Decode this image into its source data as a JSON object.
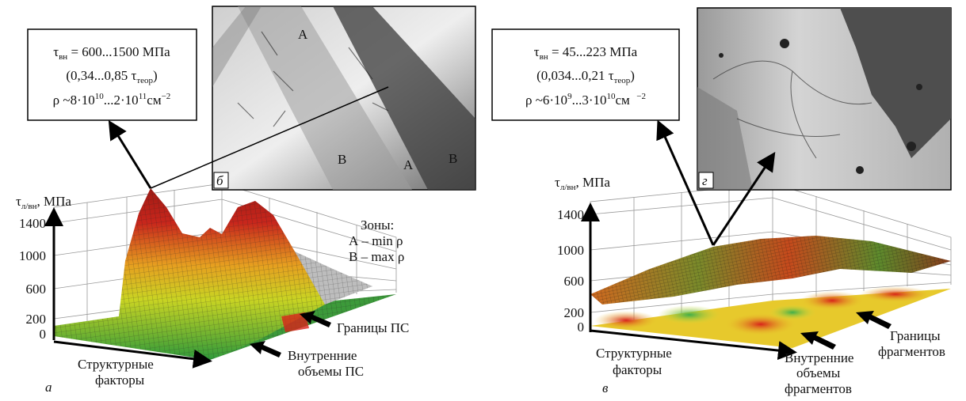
{
  "panel_a": {
    "callout": {
      "l1": {
        "sym": "τ",
        "sub": "вн",
        "rest": " = 600...1500 МПа"
      },
      "l2": {
        "pre": "(0,34...0,85 τ",
        "sub": "теор",
        "post": ")"
      },
      "l3": {
        "pre": "ρ ~8·10",
        "sup1": "10",
        "mid": "...2·10",
        "sup2": "11",
        "post": "см",
        "sup3": "−2"
      }
    },
    "micrograph": {
      "labels": [
        "А",
        "В",
        "В",
        "А"
      ],
      "letter": "б"
    },
    "axis_label": {
      "sym": "τ",
      "sub": "л/вн",
      "rest": ", МПа"
    },
    "ticks": [
      1400,
      1000,
      600,
      200,
      0
    ],
    "zones": [
      "Зоны:",
      "А – min ρ",
      "В – max ρ"
    ],
    "boundaries": "Границы ПС",
    "inner": [
      "Внутренние",
      "объемы ПС"
    ],
    "factors": [
      "Структурные",
      "факторы"
    ],
    "letter": "а"
  },
  "panel_b": {
    "callout": {
      "l1": {
        "sym": "τ",
        "sub": "вн",
        "rest": " = 45...223 МПа"
      },
      "l2": {
        "pre": "(0,034...0,21 τ",
        "sub": "теор",
        "post": ")"
      },
      "l3": {
        "pre": "ρ ~6·10",
        "sup1": "9",
        "mid": "...3·10",
        "sup2": "10",
        "post": "см  ",
        "sup3": "−2"
      }
    },
    "micrograph": {
      "letter": "г"
    },
    "axis_label": {
      "sym": "τ",
      "sub": "л/вн",
      "rest": ", МПа"
    },
    "ticks": [
      1400,
      1000,
      600,
      200,
      0
    ],
    "factors": [
      "Структурные",
      "факторы"
    ],
    "inner": [
      "Внутренние",
      "объемы",
      "фрагментов"
    ],
    "boundaries": [
      "Границы",
      "фрагментов"
    ],
    "letter": "в"
  }
}
